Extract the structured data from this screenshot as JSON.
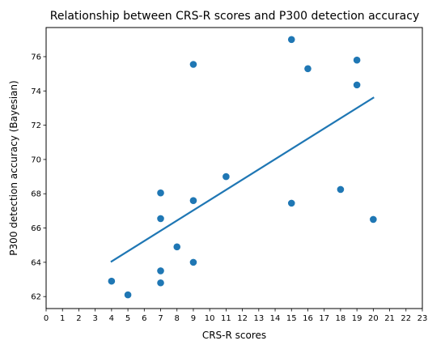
{
  "chart_data": {
    "type": "scatter",
    "title": "Relationship between CRS-R scores and P300 detection accuracy",
    "xlabel": "CRS-R scores",
    "ylabel": "P300 detection accuracy (Bayesian)",
    "xlim": [
      0,
      23
    ],
    "ylim": [
      61.3,
      77.7
    ],
    "x_ticks": [
      0,
      1,
      2,
      3,
      4,
      5,
      6,
      7,
      8,
      9,
      10,
      11,
      12,
      13,
      14,
      15,
      16,
      17,
      18,
      19,
      20,
      21,
      22,
      23
    ],
    "y_ticks": [
      62,
      64,
      66,
      68,
      70,
      72,
      74,
      76
    ],
    "grid": false,
    "legend": "none",
    "color": "#1f77b4",
    "points": [
      {
        "x": 4,
        "y": 62.9
      },
      {
        "x": 5,
        "y": 62.1
      },
      {
        "x": 7,
        "y": 68.05
      },
      {
        "x": 7,
        "y": 66.55
      },
      {
        "x": 7,
        "y": 63.5
      },
      {
        "x": 7,
        "y": 62.8
      },
      {
        "x": 8,
        "y": 64.9
      },
      {
        "x": 9,
        "y": 75.55
      },
      {
        "x": 9,
        "y": 67.6
      },
      {
        "x": 9,
        "y": 64.0
      },
      {
        "x": 11,
        "y": 69.0
      },
      {
        "x": 15,
        "y": 77.0
      },
      {
        "x": 15,
        "y": 67.45
      },
      {
        "x": 16,
        "y": 75.3
      },
      {
        "x": 18,
        "y": 68.25
      },
      {
        "x": 19,
        "y": 75.8
      },
      {
        "x": 19,
        "y": 74.35
      },
      {
        "x": 20,
        "y": 66.5
      }
    ],
    "trend_line": {
      "x": [
        4,
        20
      ],
      "y": [
        64.05,
        73.6
      ]
    }
  }
}
